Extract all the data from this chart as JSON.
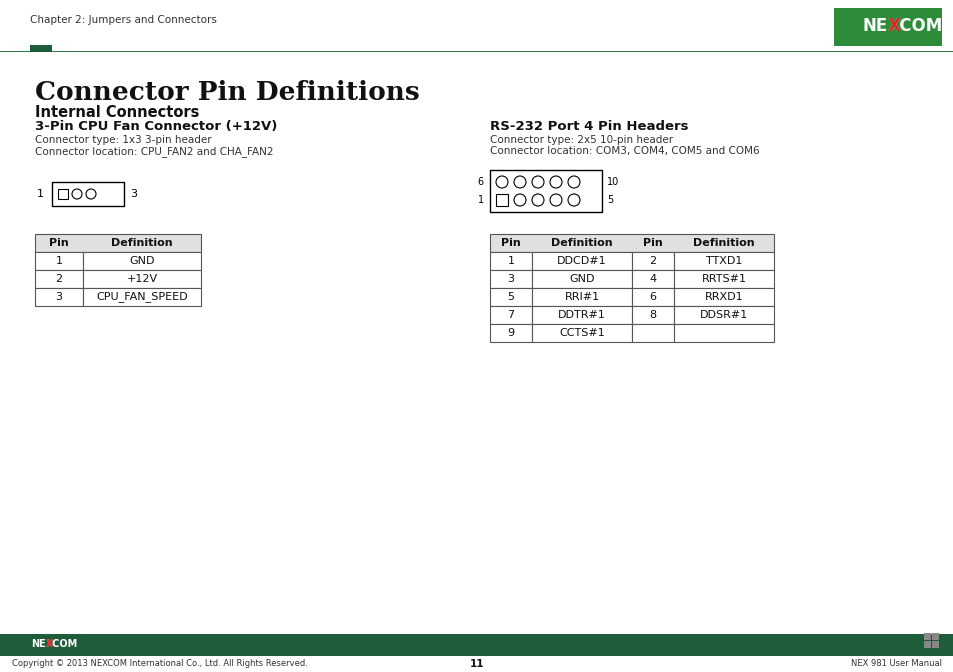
{
  "title": "Connector Pin Definitions",
  "header_text": "Chapter 2: Jumpers and Connectors",
  "page_num": "11",
  "footer_left": "Copyright © 2013 NEXCOM International Co., Ltd. All Rights Reserved.",
  "footer_right": "NEX 981 User Manual",
  "section1_title": "Internal Connectors",
  "section2_title": "3-Pin CPU Fan Connector (+12V)",
  "section2_type": "Connector type: 1x3 3-pin header",
  "section2_loc": "Connector location: CPU_FAN2 and CHA_FAN2",
  "section3_title": "RS-232 Port 4 Pin Headers",
  "section3_type": "Connector type: 2x5 10-pin header",
  "section3_loc": "Connector location: COM3, COM4, COM5 and COM6",
  "left_table_headers": [
    "Pin",
    "Definition"
  ],
  "left_table_data": [
    [
      "1",
      "GND"
    ],
    [
      "2",
      "+12V"
    ],
    [
      "3",
      "CPU_FAN_SPEED"
    ]
  ],
  "right_table_headers": [
    "Pin",
    "Definition",
    "Pin",
    "Definition"
  ],
  "right_table_data": [
    [
      "1",
      "DDCD#1",
      "2",
      "TTXD1"
    ],
    [
      "3",
      "GND",
      "4",
      "RRTS#1"
    ],
    [
      "5",
      "RRI#1",
      "6",
      "RRXD1"
    ],
    [
      "7",
      "DDTR#1",
      "8",
      "DDSR#1"
    ],
    [
      "9",
      "CCTS#1",
      "",
      ""
    ]
  ],
  "green_dark": "#1e5c3a",
  "green_logo": "#2e8b3a",
  "green_accent": "#3a7a50",
  "bg_color": "#ffffff",
  "text_dark": "#1a1a1a",
  "text_gray": "#444444",
  "table_header_bg": "#e0e0e0",
  "table_border": "#555555",
  "footer_bg": "#1e5c3a",
  "header_line": "#2e7a50"
}
